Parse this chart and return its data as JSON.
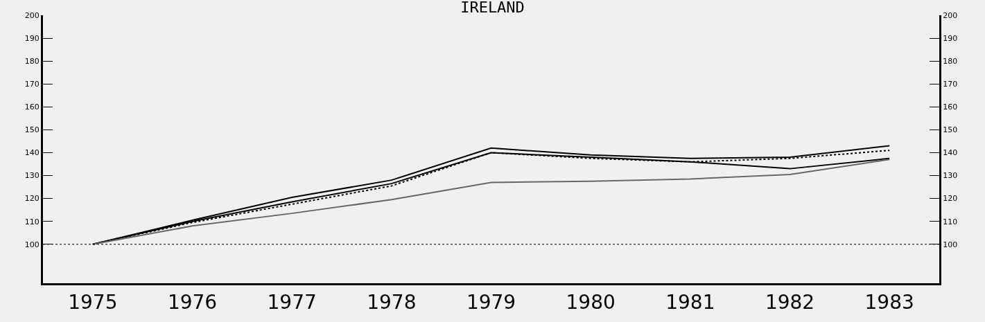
{
  "chart_data": {
    "type": "line",
    "title": "IRELAND",
    "categories": [
      "1975",
      "1976",
      "1977",
      "1978",
      "1979",
      "1980",
      "1981",
      "1982",
      "1983"
    ],
    "series": [
      {
        "color": "#000000",
        "line_style": "solid",
        "values": [
          100,
          110.5,
          120.5,
          128,
          142,
          139,
          137.5,
          138,
          143
        ]
      },
      {
        "color": "#000000",
        "line_style": "dotted",
        "values": [
          100,
          109.5,
          117.5,
          125.5,
          140,
          137.5,
          136,
          137.5,
          141
        ]
      },
      {
        "color": "#000000",
        "line_style": "solid",
        "values": [
          100,
          110,
          118.5,
          126.5,
          140,
          138,
          136,
          133,
          137.5
        ]
      },
      {
        "color": "#666666",
        "line_style": "solid",
        "values": [
          100,
          108,
          113.5,
          119.5,
          127,
          127.5,
          128.5,
          130.5,
          137
        ]
      }
    ],
    "ylim": [
      83,
      200
    ],
    "yticks": [
      100,
      110,
      120,
      130,
      140,
      150,
      160,
      170,
      180,
      190,
      200
    ],
    "y2lim": [
      83,
      200
    ],
    "y2ticks": [
      100,
      110,
      120,
      130,
      140,
      150,
      160,
      170,
      180,
      190,
      200
    ],
    "ref_lines": [
      {
        "axis": "y",
        "value": 100,
        "color": "#000000",
        "line_style": "dotted"
      }
    ],
    "grid": false,
    "marker": "none"
  }
}
